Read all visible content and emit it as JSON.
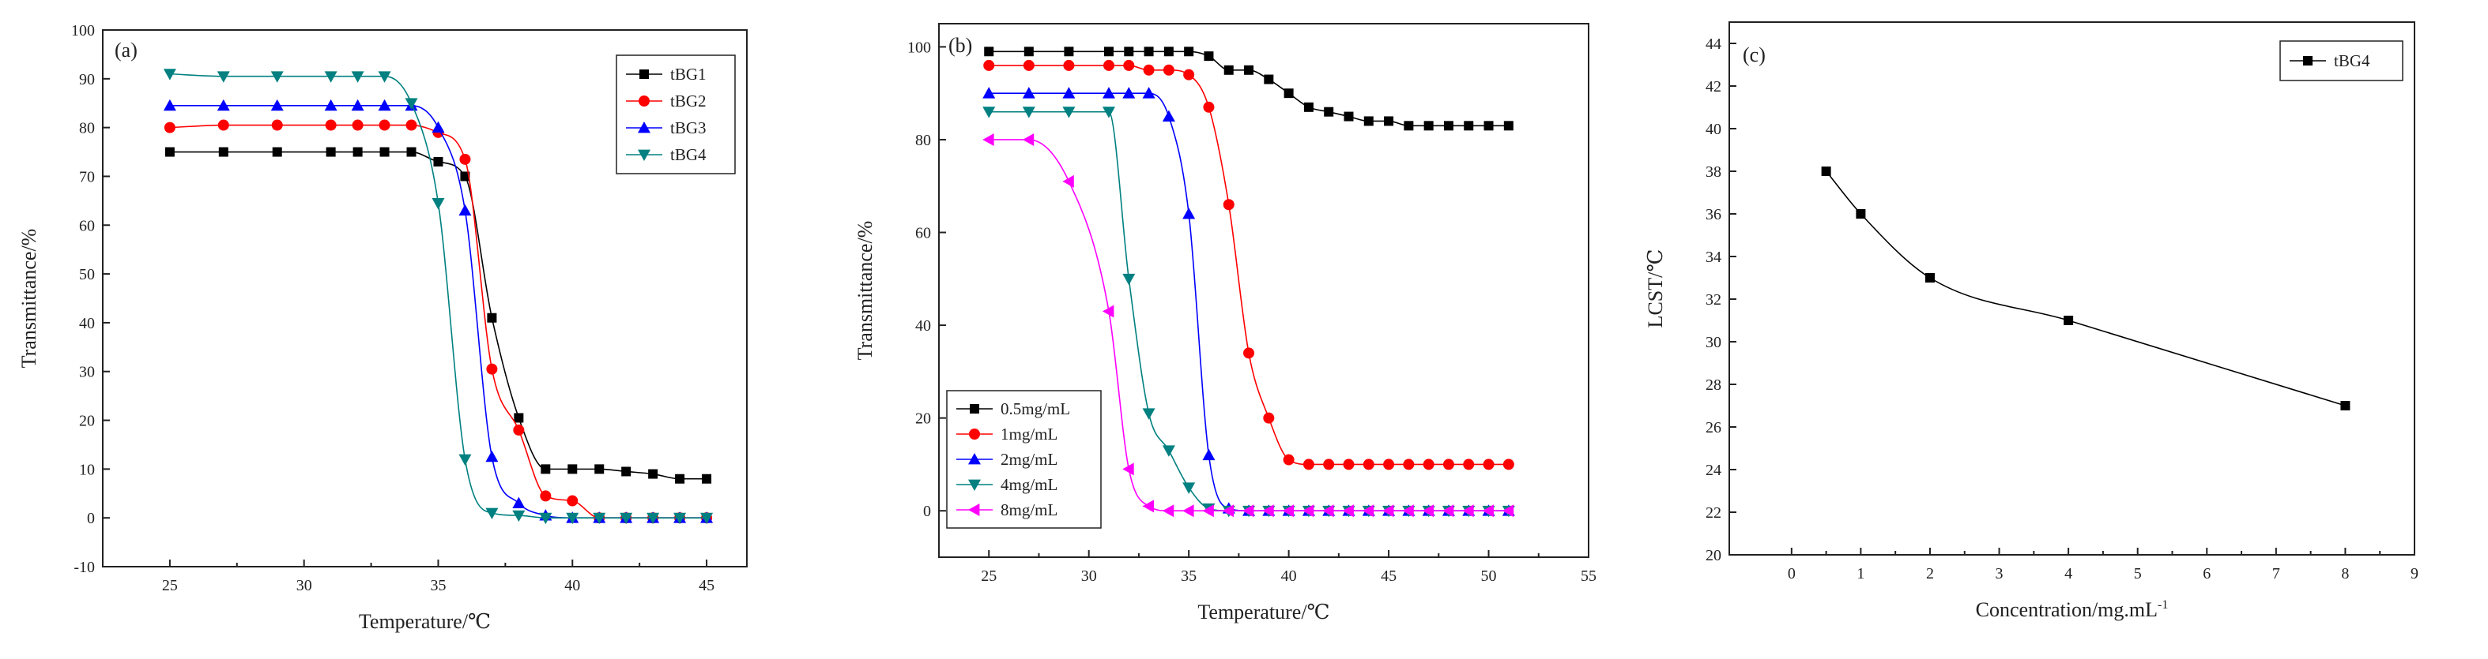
{
  "chart_data": [
    {
      "panel": "(a)",
      "type": "line",
      "xlabel": "Temperature/℃",
      "ylabel": "Transmittance/%",
      "xlim": [
        22.5,
        46.5
      ],
      "ylim": [
        -10,
        100
      ],
      "xticks": [
        25,
        30,
        35,
        40,
        45
      ],
      "yticks": [
        -10,
        0,
        10,
        20,
        30,
        40,
        50,
        60,
        70,
        80,
        90,
        100
      ],
      "legend_position": "top-right",
      "series": [
        {
          "name": "tBG1",
          "color": "#000000",
          "marker": "square",
          "x": [
            25,
            27,
            29,
            31,
            32,
            33,
            34,
            35,
            36,
            37,
            38,
            39,
            40,
            41,
            42,
            43,
            44,
            45
          ],
          "y": [
            75,
            75,
            75,
            75,
            75,
            75,
            75,
            73,
            70,
            41,
            20.5,
            10,
            10,
            10,
            9.5,
            9,
            8,
            8
          ]
        },
        {
          "name": "tBG2",
          "color": "#ff0000",
          "marker": "circle",
          "x": [
            25,
            27,
            29,
            31,
            32,
            33,
            34,
            35,
            36,
            37,
            38,
            39,
            40,
            41,
            42,
            43,
            44,
            45
          ],
          "y": [
            80,
            80.5,
            80.5,
            80.5,
            80.5,
            80.5,
            80.5,
            79,
            73.5,
            30.5,
            18,
            4.5,
            3.5,
            0,
            0,
            0,
            0,
            0
          ]
        },
        {
          "name": "tBG3",
          "color": "#0000ff",
          "marker": "triangle-up",
          "x": [
            25,
            27,
            29,
            31,
            32,
            33,
            34,
            35,
            36,
            37,
            38,
            39,
            40,
            41,
            42,
            43,
            44,
            45
          ],
          "y": [
            84.5,
            84.5,
            84.5,
            84.5,
            84.5,
            84.5,
            84.5,
            80,
            63,
            12.5,
            3,
            0.5,
            0,
            0,
            0,
            0,
            0,
            0
          ]
        },
        {
          "name": "tBG4",
          "color": "#008080",
          "marker": "triangle-down",
          "x": [
            25,
            27,
            29,
            31,
            32,
            33,
            34,
            35,
            36,
            37,
            38,
            39,
            40,
            41,
            42,
            43,
            44,
            45
          ],
          "y": [
            91,
            90.5,
            90.5,
            90.5,
            90.5,
            90.5,
            85,
            64.5,
            12,
            1,
            0.5,
            0,
            0,
            0,
            0,
            0,
            0,
            0
          ]
        }
      ]
    },
    {
      "panel": "(b)",
      "type": "line",
      "xlabel": "Temperature/℃",
      "ylabel": "Transmittance/%",
      "xlim": [
        22.5,
        55
      ],
      "ylim": [
        -10,
        105
      ],
      "xticks": [
        25,
        30,
        35,
        40,
        45,
        50,
        55
      ],
      "yticks": [
        0,
        20,
        40,
        60,
        80,
        100
      ],
      "legend_position": "bottom-left",
      "series": [
        {
          "name": "0.5mg/mL",
          "color": "#000000",
          "marker": "square",
          "x": [
            25,
            27,
            29,
            31,
            32,
            33,
            34,
            35,
            36,
            37,
            38,
            39,
            40,
            41,
            42,
            43,
            44,
            45,
            46,
            47,
            48,
            49,
            50,
            51
          ],
          "y": [
            99,
            99,
            99,
            99,
            99,
            99,
            99,
            99,
            98,
            95,
            95,
            93,
            90,
            87,
            86,
            85,
            84,
            84,
            83,
            83,
            83,
            83,
            83,
            83
          ]
        },
        {
          "name": "1mg/mL",
          "color": "#ff0000",
          "marker": "circle",
          "x": [
            25,
            27,
            29,
            31,
            32,
            33,
            34,
            35,
            36,
            37,
            38,
            39,
            40,
            41,
            42,
            43,
            44,
            45,
            46,
            47,
            48,
            49,
            50,
            51
          ],
          "y": [
            96,
            96,
            96,
            96,
            96,
            95,
            95,
            94,
            87,
            66,
            34,
            20,
            11,
            10,
            10,
            10,
            10,
            10,
            10,
            10,
            10,
            10,
            10,
            10
          ]
        },
        {
          "name": "2mg/mL",
          "color": "#0000ff",
          "marker": "triangle-up",
          "x": [
            25,
            27,
            29,
            31,
            32,
            33,
            34,
            35,
            36,
            37,
            38,
            39,
            40,
            41,
            42,
            43,
            44,
            45,
            46,
            47,
            48,
            49,
            50,
            51
          ],
          "y": [
            90,
            90,
            90,
            90,
            90,
            90,
            85,
            64,
            12,
            0.5,
            0,
            0,
            0,
            0,
            0,
            0,
            0,
            0,
            0,
            0,
            0,
            0,
            0,
            0
          ]
        },
        {
          "name": "4mg/mL",
          "color": "#008080",
          "marker": "triangle-down",
          "x": [
            25,
            27,
            29,
            31,
            32,
            33,
            34,
            35,
            36,
            37,
            38,
            39,
            40,
            41,
            42,
            43,
            44,
            45,
            46,
            47,
            48,
            49,
            50,
            51
          ],
          "y": [
            86,
            86,
            86,
            86,
            50,
            21,
            13,
            5,
            0.5,
            0,
            0,
            0,
            0,
            0,
            0,
            0,
            0,
            0,
            0,
            0,
            0,
            0,
            0,
            0
          ]
        },
        {
          "name": "8mg/mL",
          "color": "#ff00ff",
          "marker": "triangle-left",
          "x": [
            25,
            27,
            29,
            31,
            32,
            33,
            34,
            35,
            36,
            37,
            38,
            39,
            40,
            41,
            42,
            43,
            44,
            45,
            46,
            47,
            48,
            49,
            50,
            51
          ],
          "y": [
            80,
            80,
            71,
            43,
            9,
            1,
            0,
            0,
            0,
            0,
            0,
            0,
            0,
            0,
            0,
            0,
            0,
            0,
            0,
            0,
            0,
            0,
            0,
            0
          ]
        }
      ]
    },
    {
      "panel": "(c)",
      "type": "scatter",
      "xlabel": "Concentration/mg.mL",
      "xlabel_superscript": "-1",
      "ylabel": "LCST/℃",
      "xlim": [
        -0.9,
        9
      ],
      "ylim": [
        20,
        45
      ],
      "xticks": [
        0,
        1,
        2,
        3,
        4,
        5,
        6,
        7,
        8,
        9
      ],
      "yticks": [
        20,
        22,
        24,
        26,
        28,
        30,
        32,
        34,
        36,
        38,
        40,
        42,
        44
      ],
      "legend_position": "top-right",
      "series": [
        {
          "name": "tBG4",
          "color": "#000000",
          "marker": "square",
          "x": [
            0.5,
            1,
            2,
            4,
            8
          ],
          "y": [
            38,
            36,
            33,
            31,
            27
          ]
        }
      ]
    }
  ]
}
